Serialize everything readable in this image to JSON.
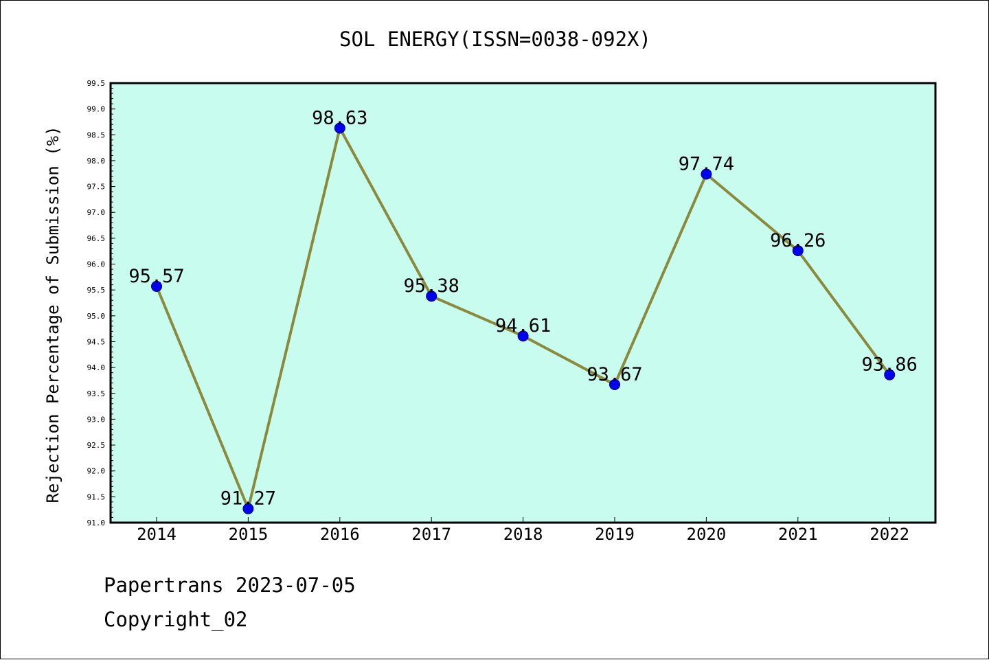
{
  "chart_data": {
    "type": "line",
    "title": "SOL ENERGY(ISSN=0038-092X)",
    "xlabel": "",
    "ylabel": "Rejection Percentage of Submission (%)",
    "categories": [
      "2014",
      "2015",
      "2016",
      "2017",
      "2018",
      "2019",
      "2020",
      "2021",
      "2022"
    ],
    "series": [
      {
        "name": "Rejection Percentage",
        "values": [
          95.57,
          91.27,
          98.63,
          95.38,
          94.61,
          93.67,
          97.74,
          96.26,
          93.86
        ],
        "labels": [
          "95.57",
          "91.27",
          "98.63",
          "95.38",
          "94.61",
          "93.67",
          "97.74",
          "96.26",
          "93.86"
        ]
      }
    ],
    "ylim": [
      91.0,
      99.5
    ],
    "yticks": [
      "91.0",
      "91.5",
      "92.0",
      "92.5",
      "93.0",
      "93.5",
      "94.0",
      "94.5",
      "95.0",
      "95.5",
      "96.0",
      "96.5",
      "97.0",
      "97.5",
      "98.0",
      "98.5",
      "99.0",
      "99.5"
    ],
    "grid": false,
    "colors": {
      "plot_background": "#c8fcee",
      "line": "#8b8a3c",
      "marker": "#0000ee"
    }
  },
  "footer": {
    "line1": "Papertrans 2023-07-05",
    "line2": "Copyright_02"
  }
}
